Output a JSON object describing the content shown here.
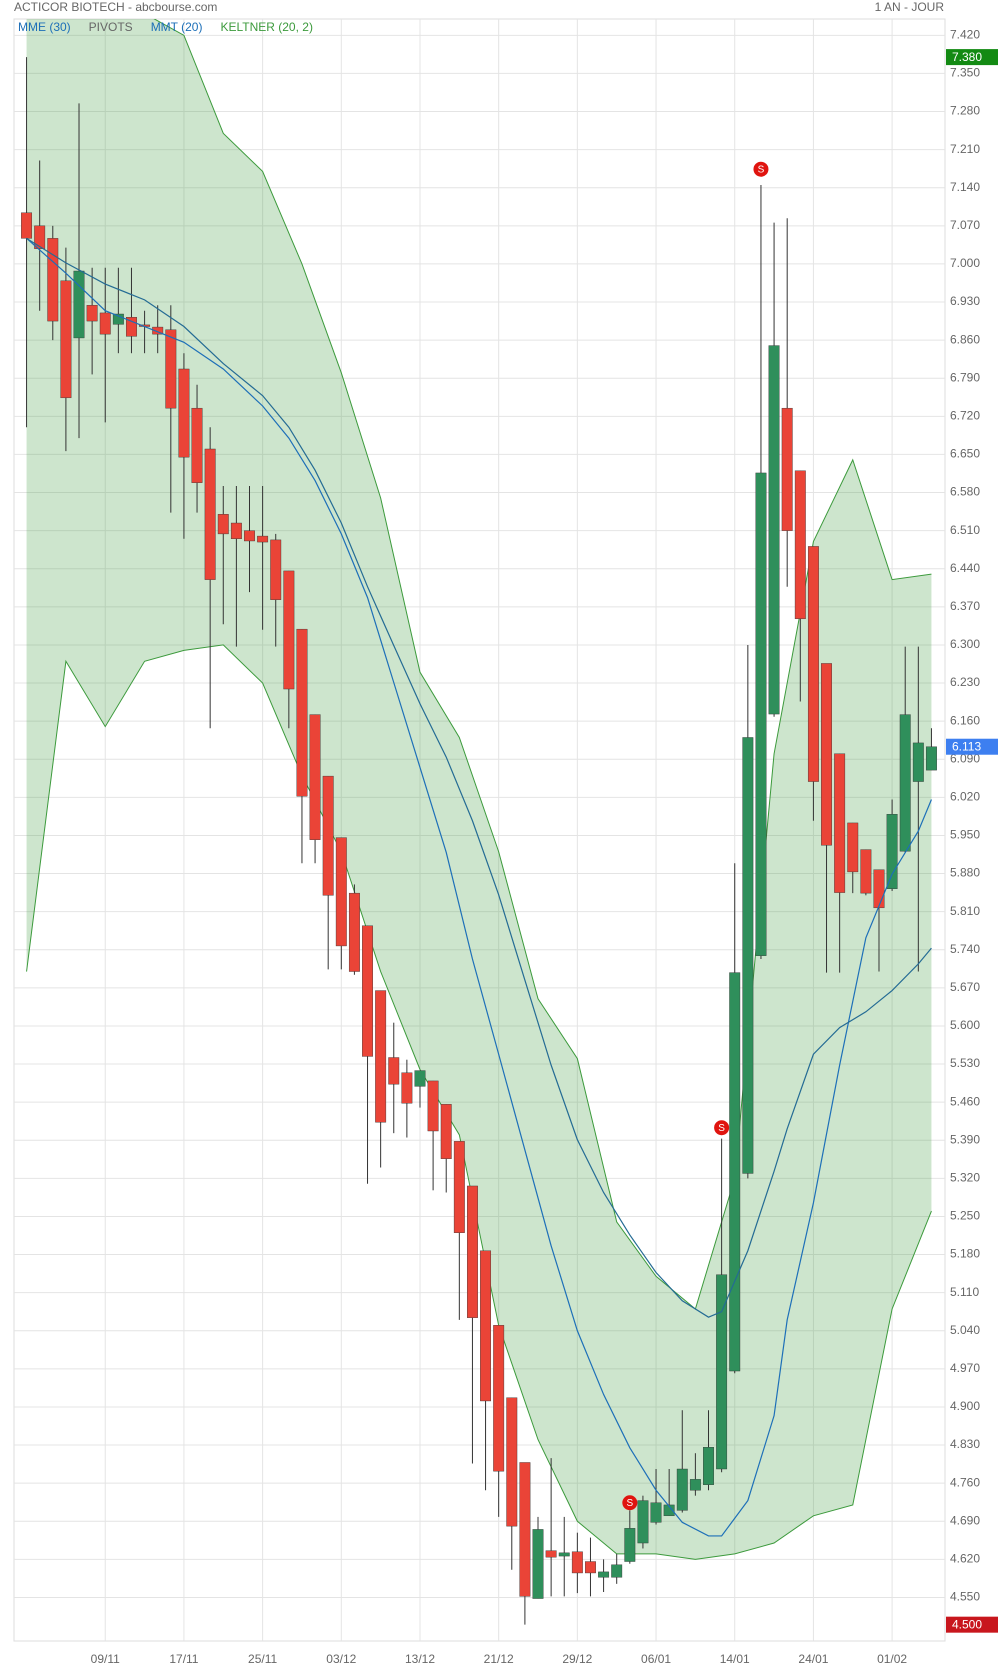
{
  "chart_data": {
    "type": "candlestick",
    "title": "ACTICOR BIOTECH - abcbourse.com",
    "subtitle": "1 AN - JOUR",
    "legend": [
      {
        "name": "MME (30)",
        "color": "#1d6fb8"
      },
      {
        "name": "PIVOTS",
        "color": "#666666"
      },
      {
        "name": "MMT (20)",
        "color": "#1d6fb8"
      },
      {
        "name": "KELTNER (20, 2)",
        "color": "#3c9a3c"
      }
    ],
    "categories": [
      null,
      null,
      null,
      null,
      null,
      null,
      "09/11",
      null,
      null,
      null,
      null,
      null,
      "17/11",
      null,
      null,
      null,
      null,
      null,
      "25/11",
      null,
      null,
      null,
      null,
      null,
      "03/12",
      null,
      null,
      null,
      null,
      null,
      "13/12",
      null,
      null,
      null,
      null,
      null,
      "21/12",
      null,
      null,
      null,
      null,
      null,
      "29/12",
      null,
      null,
      null,
      null,
      null,
      "06/01",
      null,
      null,
      null,
      null,
      null,
      "14/01",
      null,
      null,
      null,
      null,
      null,
      "24/01",
      null,
      null,
      null,
      null,
      null,
      "01/02",
      null,
      null,
      null
    ],
    "open": [
      7.094,
      7.07,
      7.047,
      6.969,
      6.864,
      6.924,
      6.91,
      6.889,
      6.902,
      6.888,
      6.884,
      6.879,
      6.807,
      6.735,
      6.66,
      6.54,
      6.524,
      6.51,
      6.5,
      6.493,
      6.436,
      6.329,
      6.172,
      6.059,
      5.946,
      5.844,
      5.784,
      5.665,
      5.542,
      5.514,
      5.489,
      5.499,
      5.456,
      5.388,
      5.306,
      5.187,
      5.05,
      4.917,
      4.798,
      4.548,
      4.636,
      4.626,
      4.634,
      4.616,
      4.587,
      4.587,
      4.616,
      4.65,
      4.688,
      4.7,
      4.71,
      4.747,
      4.757,
      4.786,
      4.966,
      5.329,
      5.729,
      6.173,
      6.735,
      6.62,
      6.481,
      6.266,
      6.1,
      5.973,
      5.924,
      5.887,
      5.852,
      5.921,
      6.049,
      6.07
    ],
    "high": [
      7.38,
      7.19,
      7.07,
      7.03,
      7.295,
      6.993,
      6.993,
      6.993,
      6.993,
      6.914,
      6.924,
      6.924,
      6.836,
      6.778,
      6.7,
      6.592,
      6.592,
      6.592,
      6.592,
      6.504,
      6.436,
      6.329,
      6.172,
      6.059,
      5.946,
      5.86,
      5.784,
      5.665,
      5.606,
      5.538,
      5.518,
      5.499,
      5.456,
      5.388,
      5.306,
      5.187,
      5.05,
      4.917,
      4.798,
      4.698,
      4.806,
      4.698,
      4.669,
      4.66,
      4.62,
      4.63,
      4.71,
      4.737,
      4.786,
      4.786,
      4.894,
      4.815,
      4.894,
      5.393,
      5.899,
      6.3,
      7.145,
      7.076,
      7.084,
      6.62,
      6.481,
      6.266,
      6.1,
      5.973,
      5.924,
      5.887,
      6.016,
      6.297,
      6.297,
      6.147
    ],
    "low": [
      6.7,
      6.914,
      6.86,
      6.656,
      6.68,
      6.797,
      6.709,
      6.836,
      6.836,
      6.836,
      6.836,
      6.543,
      6.495,
      6.543,
      6.147,
      6.338,
      6.297,
      6.397,
      6.328,
      6.297,
      6.147,
      5.899,
      5.899,
      5.704,
      5.704,
      5.694,
      5.31,
      5.34,
      5.403,
      5.395,
      5.45,
      5.298,
      5.294,
      5.06,
      4.796,
      4.747,
      4.698,
      4.601,
      4.5,
      4.548,
      4.552,
      4.552,
      4.558,
      4.552,
      4.56,
      4.575,
      4.612,
      4.64,
      4.684,
      4.7,
      4.706,
      4.737,
      4.747,
      4.78,
      4.962,
      5.32,
      5.723,
      6.168,
      6.407,
      6.196,
      5.977,
      5.698,
      5.698,
      5.844,
      5.84,
      5.7,
      5.848,
      5.919,
      5.7,
      6.07
    ],
    "close": [
      7.047,
      7.028,
      6.895,
      6.754,
      6.987,
      6.895,
      6.871,
      6.908,
      6.867,
      6.885,
      6.871,
      6.735,
      6.645,
      6.598,
      6.42,
      6.504,
      6.495,
      6.491,
      6.489,
      6.383,
      6.219,
      6.022,
      5.942,
      5.84,
      5.747,
      5.7,
      5.544,
      5.423,
      5.493,
      5.458,
      5.518,
      5.407,
      5.356,
      5.22,
      5.064,
      4.911,
      4.782,
      4.681,
      4.552,
      4.675,
      4.624,
      4.632,
      4.595,
      4.595,
      4.597,
      4.61,
      4.677,
      4.728,
      4.724,
      4.72,
      4.786,
      4.767,
      4.826,
      5.143,
      5.698,
      6.13,
      6.616,
      6.85,
      6.51,
      6.348,
      6.049,
      5.932,
      5.845,
      5.883,
      5.844,
      5.817,
      5.989,
      6.172,
      6.12,
      6.113
    ],
    "up_color": "#2f8f5b",
    "down_color": "#ea4437",
    "lines": [
      {
        "name": "MMT (20)",
        "color": "#1d6fb8",
        "x": [
          0,
          3,
          6,
          9,
          12,
          15,
          18,
          20,
          22,
          24,
          26,
          28,
          30,
          32,
          34,
          36,
          38,
          40,
          42,
          44,
          46,
          48,
          50,
          52,
          53,
          55,
          57,
          58,
          60,
          62,
          64,
          66,
          68,
          69
        ],
        "values": [
          7.047,
          6.983,
          6.914,
          6.885,
          6.856,
          6.807,
          6.739,
          6.68,
          6.602,
          6.504,
          6.387,
          6.231,
          6.075,
          5.919,
          5.723,
          5.548,
          5.372,
          5.196,
          5.04,
          4.923,
          4.825,
          4.747,
          4.688,
          4.663,
          4.663,
          4.728,
          4.884,
          5.06,
          5.275,
          5.528,
          5.762,
          5.879,
          5.958,
          6.016
        ]
      },
      {
        "name": "MME (30)",
        "color": "#246b94",
        "x": [
          0,
          3,
          6,
          9,
          12,
          15,
          18,
          20,
          22,
          24,
          26,
          28,
          30,
          32,
          34,
          36,
          38,
          40,
          42,
          44,
          46,
          48,
          50,
          52,
          53,
          55,
          57,
          58,
          60,
          62,
          64,
          66,
          68,
          69
        ],
        "values": [
          7.047,
          7.002,
          6.963,
          6.934,
          6.885,
          6.817,
          6.758,
          6.7,
          6.621,
          6.524,
          6.407,
          6.299,
          6.192,
          6.094,
          5.977,
          5.841,
          5.684,
          5.528,
          5.391,
          5.294,
          5.216,
          5.147,
          5.095,
          5.065,
          5.075,
          5.187,
          5.333,
          5.411,
          5.548,
          5.597,
          5.626,
          5.665,
          5.714,
          5.743
        ]
      }
    ],
    "keltner": {
      "color": "#3c9a3c",
      "x": [
        0,
        3,
        6,
        9,
        12,
        15,
        18,
        21,
        24,
        27,
        30,
        33,
        36,
        39,
        42,
        45,
        48,
        51,
        54,
        57,
        60,
        63,
        66,
        69
      ],
      "upper": [
        7.46,
        7.46,
        7.46,
        7.46,
        7.42,
        7.24,
        7.17,
        7.0,
        6.8,
        6.57,
        6.25,
        6.13,
        5.92,
        5.65,
        5.54,
        5.24,
        5.14,
        5.08,
        5.32,
        6.1,
        6.49,
        6.64,
        6.42,
        6.43
      ],
      "lower": [
        5.7,
        6.27,
        6.15,
        6.27,
        6.29,
        6.3,
        6.23,
        6.06,
        5.92,
        5.7,
        5.52,
        5.4,
        5.05,
        4.84,
        4.69,
        4.63,
        4.63,
        4.62,
        4.63,
        4.65,
        4.7,
        4.72,
        5.08,
        5.26
      ]
    },
    "signals": [
      {
        "index": 46,
        "value": 4.724,
        "label": "S"
      },
      {
        "index": 53,
        "value": 5.413,
        "label": "S"
      },
      {
        "index": 56,
        "value": 7.174,
        "label": "S"
      }
    ],
    "price_tags": [
      {
        "value": 7.38,
        "label": "7.380",
        "color": "#138a13"
      },
      {
        "value": 6.113,
        "label": "6.113",
        "color": "#3d7ff0"
      },
      {
        "value": 4.5,
        "label": "4.500",
        "color": "#c8161d"
      }
    ],
    "ylim": [
      4.47,
      7.45
    ],
    "yticks": [
      {
        "value": 7.42,
        "label": "7.420"
      },
      {
        "value": 7.35,
        "label": "7.350"
      },
      {
        "value": 7.28,
        "label": "7.280"
      },
      {
        "value": 7.21,
        "label": "7.210"
      },
      {
        "value": 7.14,
        "label": "7.140"
      },
      {
        "value": 7.07,
        "label": "7.070"
      },
      {
        "value": 7,
        "label": "7.000"
      },
      {
        "value": 6.93,
        "label": "6.930"
      },
      {
        "value": 6.86,
        "label": "6.860"
      },
      {
        "value": 6.79,
        "label": "6.790"
      },
      {
        "value": 6.72,
        "label": "6.720"
      },
      {
        "value": 6.65,
        "label": "6.650"
      },
      {
        "value": 6.58,
        "label": "6.580"
      },
      {
        "value": 6.51,
        "label": "6.510"
      },
      {
        "value": 6.44,
        "label": "6.440"
      },
      {
        "value": 6.37,
        "label": "6.370"
      },
      {
        "value": 6.3,
        "label": "6.300"
      },
      {
        "value": 6.23,
        "label": "6.230"
      },
      {
        "value": 6.16,
        "label": "6.160"
      },
      {
        "value": 6.09,
        "label": "6.090"
      },
      {
        "value": 6.02,
        "label": "6.020"
      },
      {
        "value": 5.95,
        "label": "5.950"
      },
      {
        "value": 5.88,
        "label": "5.880"
      },
      {
        "value": 5.81,
        "label": "5.810"
      },
      {
        "value": 5.74,
        "label": "5.740"
      },
      {
        "value": 5.67,
        "label": "5.670"
      },
      {
        "value": 5.6,
        "label": "5.600"
      },
      {
        "value": 5.53,
        "label": "5.530"
      },
      {
        "value": 5.46,
        "label": "5.460"
      },
      {
        "value": 5.39,
        "label": "5.390"
      },
      {
        "value": 5.32,
        "label": "5.320"
      },
      {
        "value": 5.25,
        "label": "5.250"
      },
      {
        "value": 5.18,
        "label": "5.180"
      },
      {
        "value": 5.11,
        "label": "5.110"
      },
      {
        "value": 5.04,
        "label": "5.040"
      },
      {
        "value": 4.97,
        "label": "4.970"
      },
      {
        "value": 4.9,
        "label": "4.900"
      },
      {
        "value": 4.83,
        "label": "4.830"
      },
      {
        "value": 4.76,
        "label": "4.760"
      },
      {
        "value": 4.69,
        "label": "4.690"
      },
      {
        "value": 4.62,
        "label": "4.620"
      },
      {
        "value": 4.55,
        "label": "4.550"
      }
    ],
    "grid": true
  }
}
